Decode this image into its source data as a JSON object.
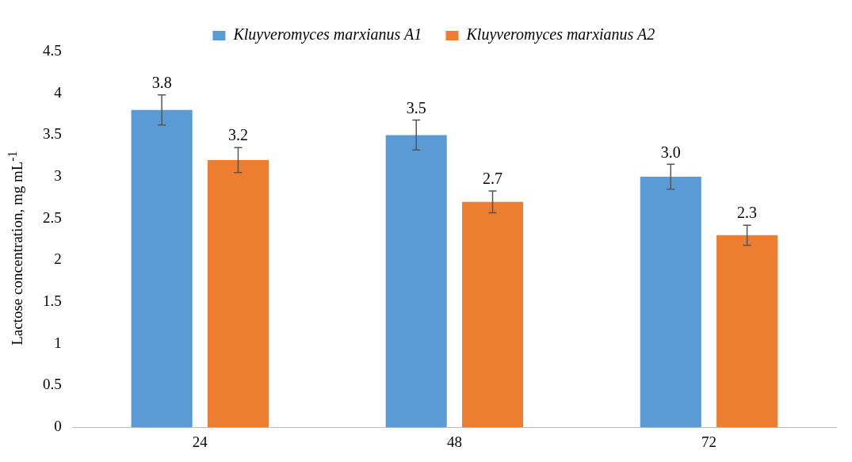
{
  "chart_data": {
    "type": "bar",
    "categories": [
      "24",
      "48",
      "72"
    ],
    "ylabel": "Lactose concentration, mg mL$^{-1}$",
    "series": [
      {
        "name": "Kluyveromyces marxianus A1",
        "color": "#5b9bd5",
        "values": [
          3.8,
          3.5,
          3.0
        ],
        "errors": [
          0.18,
          0.18,
          0.15
        ],
        "value_labels": [
          "3.8",
          "3.5",
          "3.0"
        ]
      },
      {
        "name": "Kluyveromyces marxianus A2",
        "color": "#ed7d31",
        "values": [
          3.2,
          2.7,
          2.3
        ],
        "errors": [
          0.15,
          0.13,
          0.12
        ],
        "value_labels": [
          "3.2",
          "2.7",
          "2.3"
        ]
      }
    ],
    "ylim": [
      0,
      4.5
    ],
    "yticks": [
      0,
      0.5,
      1,
      1.5,
      2,
      2.5,
      3,
      3.5,
      4,
      4.5
    ],
    "grid": false,
    "legend": "top"
  }
}
